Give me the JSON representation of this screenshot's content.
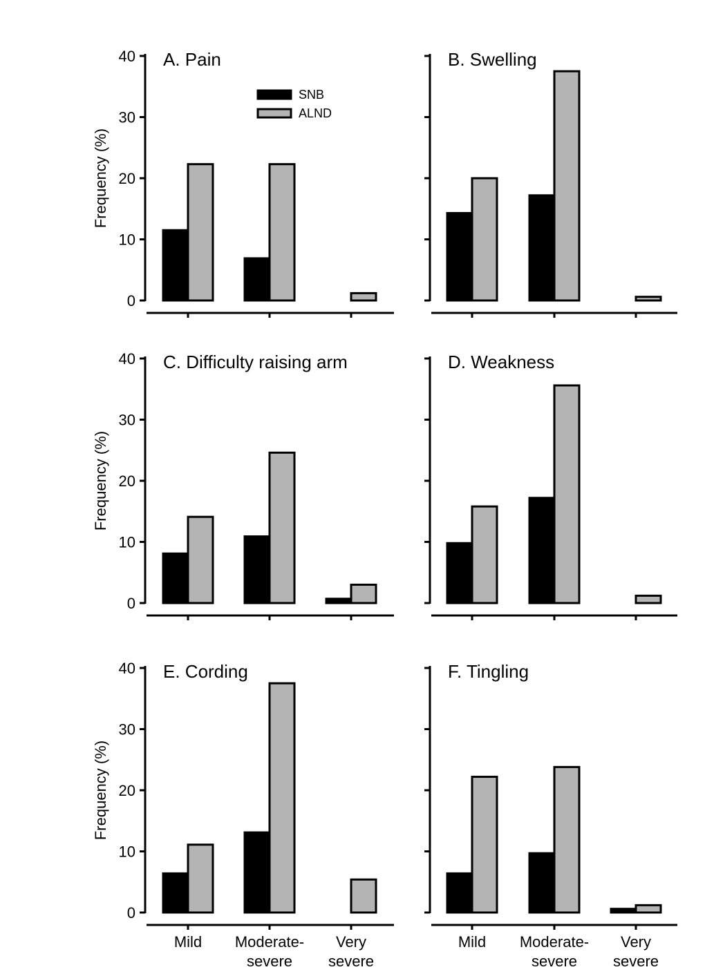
{
  "chart_data": {
    "type": "bar",
    "layout": "3x2 panel grid",
    "categories": [
      "Mild",
      "Moderate-severe",
      "Very severe"
    ],
    "category_labels": [
      [
        "Mild"
      ],
      [
        "Moderate-",
        "severe"
      ],
      [
        "Very",
        "severe"
      ]
    ],
    "ylabel": "Frequency (%)",
    "ylim": [
      0,
      40
    ],
    "yticks": [
      0,
      10,
      20,
      30,
      40
    ],
    "legend": {
      "placement": "top-center of panel A",
      "entries": [
        {
          "name": "SNB",
          "color": "#000000"
        },
        {
          "name": "ALND",
          "color": "#b4b4b4"
        }
      ]
    },
    "panels": [
      {
        "id": "A",
        "title": "A. Pain",
        "series": [
          {
            "name": "SNB",
            "values": [
              11.5,
              6.9,
              0
            ]
          },
          {
            "name": "ALND",
            "values": [
              22.3,
              22.3,
              1.2
            ]
          }
        ]
      },
      {
        "id": "B",
        "title": "B. Swelling",
        "series": [
          {
            "name": "SNB",
            "values": [
              14.3,
              17.2,
              0
            ]
          },
          {
            "name": "ALND",
            "values": [
              20.0,
              37.5,
              0.6
            ]
          }
        ]
      },
      {
        "id": "C",
        "title": "C. Difficulty raising arm",
        "series": [
          {
            "name": "SNB",
            "values": [
              8.1,
              10.9,
              0.7
            ]
          },
          {
            "name": "ALND",
            "values": [
              14.1,
              24.6,
              3.0
            ]
          }
        ]
      },
      {
        "id": "D",
        "title": "D. Weakness",
        "series": [
          {
            "name": "SNB",
            "values": [
              9.8,
              17.2,
              0
            ]
          },
          {
            "name": "ALND",
            "values": [
              15.8,
              35.6,
              1.2
            ]
          }
        ]
      },
      {
        "id": "E",
        "title": "E. Cording",
        "series": [
          {
            "name": "SNB",
            "values": [
              6.4,
              13.1,
              0
            ]
          },
          {
            "name": "ALND",
            "values": [
              11.1,
              37.5,
              5.4
            ]
          }
        ]
      },
      {
        "id": "F",
        "title": "F. Tingling",
        "series": [
          {
            "name": "SNB",
            "values": [
              6.4,
              9.7,
              0.6
            ]
          },
          {
            "name": "ALND",
            "values": [
              22.2,
              23.8,
              1.2
            ]
          }
        ]
      }
    ]
  }
}
